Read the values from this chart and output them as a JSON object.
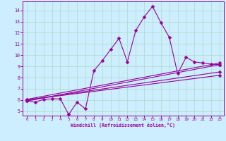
{
  "background_color": "#cceeff",
  "grid_color": "#b0ddd0",
  "line_color": "#990099",
  "xlabel": "Windchill (Refroidissement éolien,°C)",
  "xlim": [
    -0.5,
    23.5
  ],
  "ylim": [
    4.6,
    14.8
  ],
  "yticks": [
    5,
    6,
    7,
    8,
    9,
    10,
    11,
    12,
    13,
    14
  ],
  "xticks": [
    0,
    1,
    2,
    3,
    4,
    5,
    6,
    7,
    8,
    9,
    10,
    11,
    12,
    13,
    14,
    15,
    16,
    17,
    18,
    19,
    20,
    21,
    22,
    23
  ],
  "main_x": [
    0,
    1,
    2,
    3,
    4,
    5,
    6,
    7,
    8,
    9,
    10,
    11,
    12,
    13,
    14,
    15,
    16,
    17,
    18,
    19,
    20,
    21,
    22,
    23
  ],
  "main_y": [
    5.9,
    5.8,
    6.05,
    6.1,
    6.1,
    4.7,
    5.8,
    5.2,
    8.6,
    9.5,
    10.5,
    11.5,
    9.4,
    12.2,
    13.4,
    14.35,
    12.9,
    11.6,
    8.35,
    9.8,
    9.4,
    9.3,
    9.2,
    9.15
  ],
  "lines": [
    {
      "x": [
        0,
        23
      ],
      "y": [
        5.9,
        9.15
      ]
    },
    {
      "x": [
        0,
        23
      ],
      "y": [
        6.05,
        9.3
      ]
    },
    {
      "x": [
        0,
        23
      ],
      "y": [
        6.0,
        8.5
      ]
    },
    {
      "x": [
        0,
        23
      ],
      "y": [
        6.0,
        8.2
      ]
    }
  ],
  "markersize": 2.5,
  "linewidth": 0.8
}
